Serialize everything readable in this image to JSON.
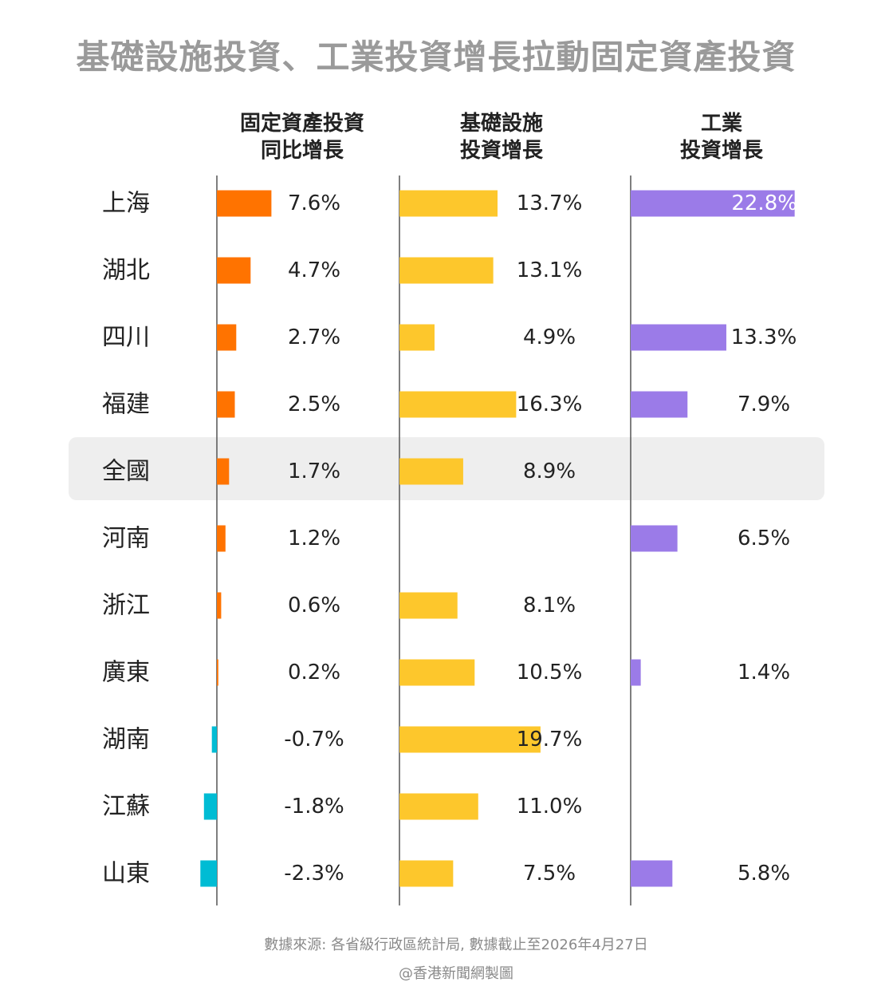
{
  "title": "基礎設施投資、工業投資增長拉動固定資產投資",
  "highlight_row": "全國",
  "colors": {
    "fixed_positive": "#ff7300",
    "fixed_negative": "#00bcd4",
    "infrastructure": "#fdc72c",
    "industry": "#9b7be8",
    "axis": "#555555",
    "highlight_bg": "#eeeeee"
  },
  "chart_data": {
    "type": "bar",
    "orientation": "horizontal",
    "categories": [
      "上海",
      "湖北",
      "四川",
      "福建",
      "全國",
      "河南",
      "浙江",
      "廣東",
      "湖南",
      "江蘇",
      "山東"
    ],
    "series": [
      {
        "key": "fixed",
        "name": "固定資產投資\n同比增長",
        "values": [
          7.6,
          4.7,
          2.7,
          2.5,
          1.7,
          1.2,
          0.6,
          0.2,
          -0.7,
          -1.8,
          -2.3
        ],
        "labels": [
          "7.6%",
          "4.7%",
          "2.7%",
          "2.5%",
          "1.7%",
          "1.2%",
          "0.6%",
          "0.2%",
          "-0.7%",
          "-1.8%",
          "-2.3%"
        ]
      },
      {
        "key": "infrastructure",
        "name": "基礎設施\n投資增長",
        "values": [
          13.7,
          13.1,
          4.9,
          16.3,
          8.9,
          null,
          8.1,
          10.5,
          19.7,
          11.0,
          7.5
        ],
        "labels": [
          "13.7%",
          "13.1%",
          "4.9%",
          "16.3%",
          "8.9%",
          null,
          "8.1%",
          "10.5%",
          "19.7%",
          "11.0%",
          "7.5%"
        ]
      },
      {
        "key": "industry",
        "name": "工業\n投資增長",
        "values": [
          22.8,
          null,
          13.3,
          7.9,
          null,
          6.5,
          null,
          1.4,
          null,
          null,
          5.8
        ],
        "labels": [
          "22.8%",
          null,
          "13.3%",
          "7.9%",
          null,
          "6.5%",
          null,
          "1.4%",
          null,
          null,
          "5.8%"
        ]
      }
    ],
    "unit": "%"
  },
  "footer": {
    "source": "數據來源: 各省級行政區統計局, 數據截止至2026年4月27日",
    "credit": "@香港新聞網製圖"
  }
}
